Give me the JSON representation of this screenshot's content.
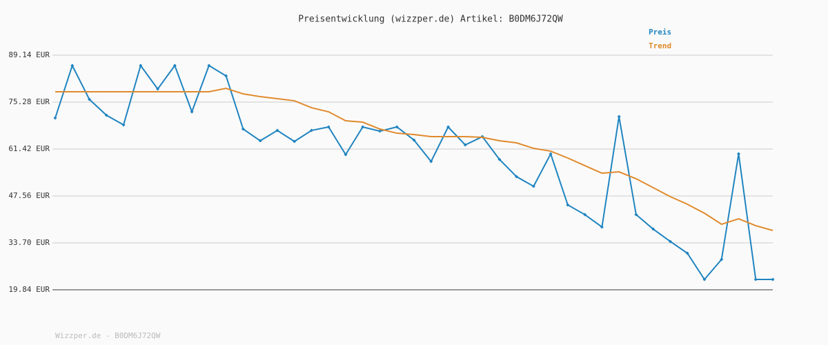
{
  "chart_data": {
    "type": "line",
    "title": "Preisentwicklung (wizzper.de) Artikel: B0DM6J72QW",
    "footer": "Wizzper.de - B0DM6J72QW",
    "ylim": [
      19.84,
      89.14
    ],
    "yticks": [
      {
        "value": 19.84,
        "label": "19.84 EUR"
      },
      {
        "value": 33.7,
        "label": "33.70 EUR"
      },
      {
        "value": 47.56,
        "label": "47.56 EUR"
      },
      {
        "value": 61.42,
        "label": "61.42 EUR"
      },
      {
        "value": 75.28,
        "label": "75.28 EUR"
      },
      {
        "value": 89.14,
        "label": "89.14 EUR"
      }
    ],
    "grid": true,
    "legend": "top-right",
    "series": [
      {
        "name": "Preis",
        "color": "#1f84c0",
        "markers": true,
        "values": [
          70.59,
          86.08,
          76.09,
          71.4,
          68.55,
          86.08,
          79.15,
          86.08,
          72.42,
          86.08,
          83.02,
          67.33,
          63.86,
          66.92,
          63.66,
          66.92,
          67.94,
          59.79,
          67.94,
          66.71,
          67.94,
          64.07,
          57.75,
          67.94,
          62.64,
          65.08,
          58.36,
          53.26,
          50.41,
          59.99,
          44.91,
          42.05,
          38.39,
          70.99,
          42.05,
          37.77,
          34.11,
          30.64,
          22.9,
          28.81,
          59.99,
          22.9,
          22.9
        ]
      },
      {
        "name": "Trend",
        "color": "#e08a2c",
        "markers": false,
        "values": [
          78.33,
          78.33,
          78.33,
          78.33,
          78.33,
          78.33,
          78.33,
          78.33,
          78.33,
          78.33,
          79.35,
          77.72,
          76.9,
          76.29,
          75.68,
          73.64,
          72.42,
          69.77,
          69.36,
          67.33,
          66.1,
          65.7,
          65.08,
          65.08,
          65.08,
          64.88,
          63.86,
          63.25,
          61.62,
          60.8,
          58.77,
          56.52,
          54.28,
          54.69,
          52.65,
          50.0,
          47.35,
          45.11,
          42.46,
          39.2,
          40.83,
          38.79,
          37.37
        ]
      }
    ]
  }
}
